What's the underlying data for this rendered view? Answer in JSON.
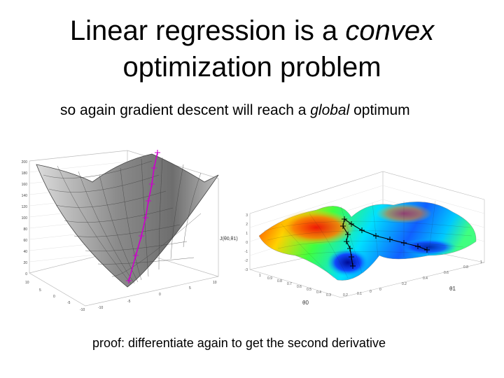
{
  "slide": {
    "title_line1_pre": "Linear regression is a ",
    "title_line1_em": "convex",
    "title_line2": "optimization problem",
    "subtitle_pre": "so again gradient descent will reach a ",
    "subtitle_em": "global",
    "subtitle_post": " optimum",
    "footer": "proof: differentiate again to get the second derivative"
  },
  "left_plot": {
    "z_ticks": [
      "200",
      "180",
      "160",
      "140",
      "120",
      "100",
      "80",
      "60",
      "40",
      "20",
      "0"
    ],
    "x_ticks": [
      "10",
      "5",
      "0",
      "-5",
      "-10"
    ],
    "y_ticks": [
      "-10",
      "-5",
      "0",
      "5",
      "10"
    ],
    "descent_color": "#cc00cc"
  },
  "right_plot": {
    "zlabel": "J(θ0,θ1)",
    "xlabel": "θ0",
    "ylabel": "θ1",
    "x_ticks": [
      "1",
      "0.9",
      "0.8",
      "0.7",
      "0.6",
      "0.5",
      "0.4",
      "0.3",
      "0.2",
      "0.1",
      "0"
    ],
    "y_ticks": [
      "0",
      "0.2",
      "0.4",
      "0.6",
      "0.8",
      "1"
    ],
    "z_ticks": [
      "3",
      "2",
      "1",
      "0",
      "-1",
      "-2",
      "-3"
    ]
  }
}
